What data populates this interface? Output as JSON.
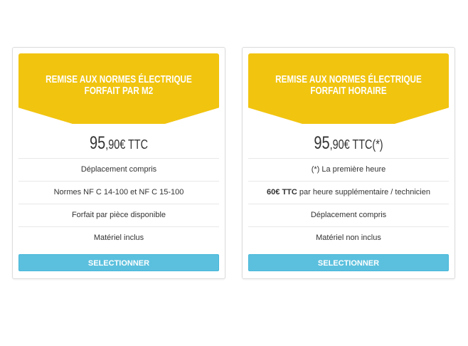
{
  "colors": {
    "header": "#f1c40f",
    "button": "#5bc0de"
  },
  "cards": [
    {
      "title_line1": "REMISE AUX NORMES ÉLECTRIQUE",
      "title_line2": "FORFAIT PAR M2",
      "price_main": "95",
      "price_decimals": ",90€ TTC",
      "features": [
        "Déplacement compris",
        "Normes NF C 14-100 et NF C 15-100",
        "Forfait par pièce disponible",
        "Matériel inclus"
      ],
      "button": "SELECTIONNER"
    },
    {
      "title_line1": "REMISE AUX NORMES ÉLECTRIQUE",
      "title_line2": "FORFAIT HORAIRE",
      "price_main": "95",
      "price_decimals": ",90€ TTC(*)",
      "features": [
        "(*) La première heure"
      ],
      "feature2_bold": "60€ TTC",
      "feature2_rest": " par heure supplémentaire / technicien",
      "features_after": [
        "Déplacement compris",
        "Matériel non inclus"
      ],
      "button": "SELECTIONNER"
    }
  ]
}
